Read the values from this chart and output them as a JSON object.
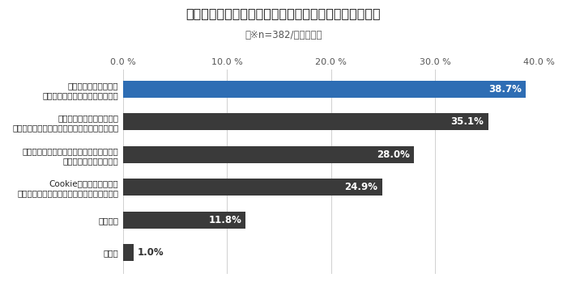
{
  "title": "ステークホルダーとの連携を難しくしている近年の動向",
  "subtitle": "（※n=382/複数回答）",
  "categories": [
    "コロナ禍を契機とした\nコミュニケーションのリモート化",
    "テクノロジーの進歩による\nマーケティング・プロモーション戦略の複雑化",
    "マーケティング・プロモーションに関わる\nステークホルダーの増大",
    "Cookieの規制強化による\n取得できるプロモーション関連データの減少",
    "特にない",
    "その他"
  ],
  "values": [
    38.7,
    35.1,
    28.0,
    24.9,
    11.8,
    1.0
  ],
  "bar_colors": [
    "#2E6DB4",
    "#3a3a3a",
    "#3a3a3a",
    "#3a3a3a",
    "#3a3a3a",
    "#3a3a3a"
  ],
  "value_labels": [
    "38.7%",
    "35.1%",
    "28.0%",
    "24.9%",
    "11.8%",
    "1.0%"
  ],
  "xlim": [
    0,
    40
  ],
  "xticks": [
    0.0,
    10.0,
    20.0,
    30.0,
    40.0
  ],
  "xtick_labels": [
    "0.0 %",
    "10.0 %",
    "20.0 %",
    "30.0 %",
    "40.0 %"
  ],
  "background_color": "#ffffff",
  "title_fontsize": 11.5,
  "subtitle_fontsize": 8.5,
  "label_fontsize": 7.5,
  "value_fontsize": 8.5,
  "tick_fontsize": 8
}
